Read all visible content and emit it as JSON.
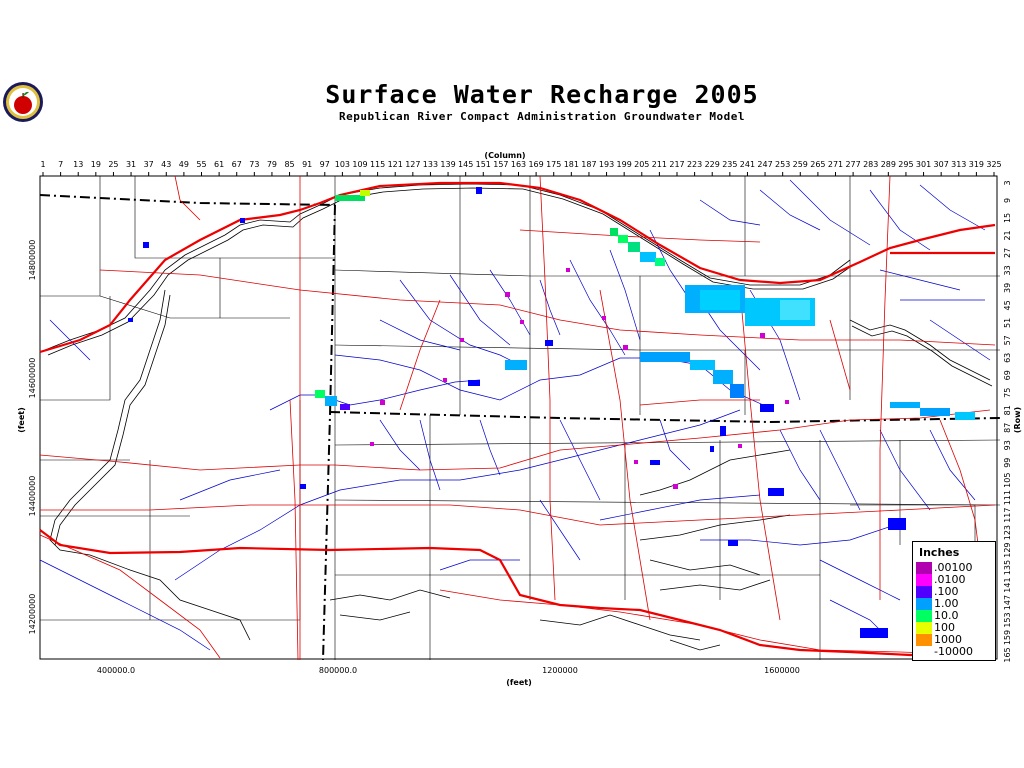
{
  "header": {
    "title": "Surface Water Recharge 2005",
    "subtitle": "Republican River Compact Administration Groundwater Model"
  },
  "axes": {
    "top_label": "(Column)",
    "right_label": "(Row)",
    "left_label": "(feet)",
    "bottom_label": "(feet)",
    "column_ticks": [
      "1",
      "7",
      "13",
      "19",
      "25",
      "31",
      "37",
      "43",
      "49",
      "55",
      "61",
      "67",
      "73",
      "79",
      "85",
      "91",
      "97",
      "103",
      "109",
      "115",
      "121",
      "127",
      "133",
      "139",
      "145",
      "151",
      "157",
      "163",
      "169",
      "175",
      "181",
      "187",
      "193",
      "199",
      "205",
      "211",
      "217",
      "223",
      "229",
      "235",
      "241",
      "247",
      "253",
      "259",
      "265",
      "271",
      "277",
      "283",
      "289",
      "295",
      "301",
      "307",
      "313",
      "319",
      "325"
    ],
    "row_ticks": [
      "3",
      "9",
      "15",
      "21",
      "27",
      "33",
      "39",
      "45",
      "51",
      "57",
      "63",
      "69",
      "75",
      "81",
      "87",
      "93",
      "99",
      "105",
      "111",
      "117",
      "123",
      "129",
      "135",
      "141",
      "147",
      "153",
      "159",
      "165"
    ],
    "y_ticks": [
      "14800000",
      "14600000",
      "14400000",
      "14200000"
    ],
    "x_ticks": [
      "400000.0",
      "800000.0",
      "1200000",
      "1600000"
    ]
  },
  "legend": {
    "title": "Inches",
    "items": [
      {
        "label": ".00100",
        "color": "#b000b0"
      },
      {
        "label": ".0100",
        "color": "#ff00ff"
      },
      {
        "label": ".100",
        "color": "#5000ff"
      },
      {
        "label": "1.00",
        "color": "#00a0ff"
      },
      {
        "label": "10.0",
        "color": "#00ff60"
      },
      {
        "label": "100",
        "color": "#e8ff00"
      },
      {
        "label": "1000",
        "color": "#ff9000"
      },
      {
        "label": "-10000",
        "color": "#ffffff"
      }
    ]
  },
  "colors": {
    "roads": "#dd0000",
    "streams": "#0000cc",
    "boundaries": "#000000",
    "background": "#ffffff"
  },
  "logo_icon": "apple-seal-icon"
}
